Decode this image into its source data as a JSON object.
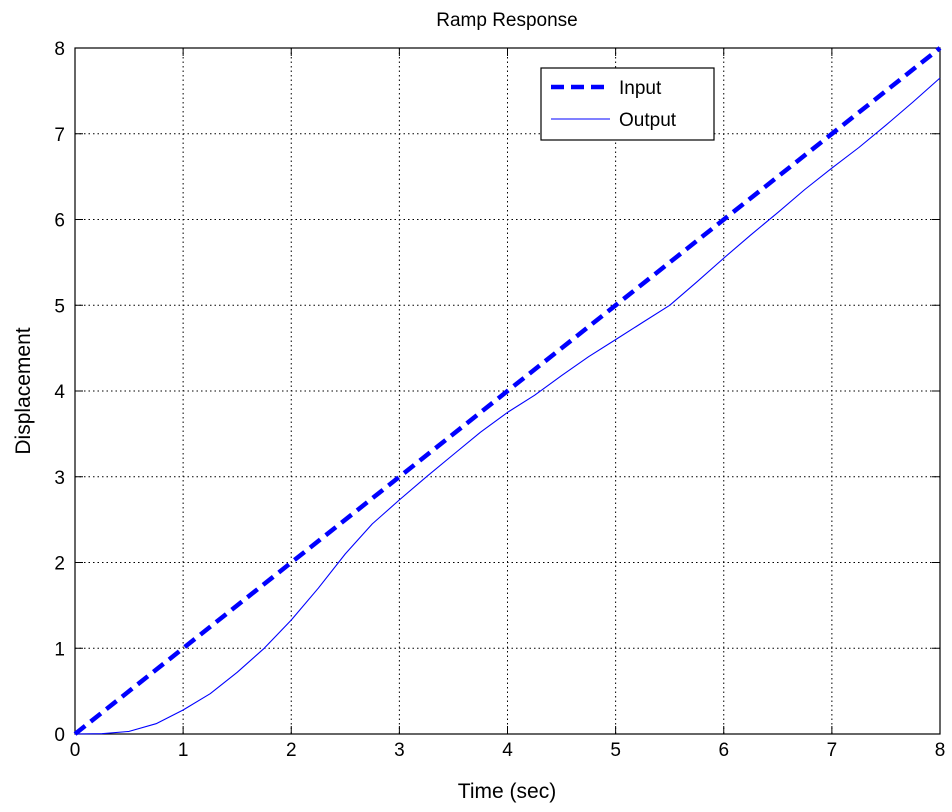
{
  "chart_data": {
    "type": "line",
    "title": "Ramp Response",
    "xlabel": "Time (sec)",
    "ylabel": "Displacement",
    "xlim": [
      0,
      8
    ],
    "ylim": [
      0,
      8
    ],
    "xticks": [
      "0",
      "1",
      "2",
      "3",
      "4",
      "5",
      "6",
      "7",
      "8"
    ],
    "yticks": [
      "0",
      "1",
      "2",
      "3",
      "4",
      "5",
      "6",
      "7",
      "8"
    ],
    "grid": true,
    "legend": {
      "position": "top-right"
    },
    "series": [
      {
        "name": "Input",
        "style": "dashed-thick",
        "color": "#0000ff",
        "x": [
          0,
          1,
          2,
          3,
          4,
          5,
          6,
          7,
          8
        ],
        "y": [
          0,
          1,
          2,
          3,
          4,
          5,
          6,
          7,
          8
        ]
      },
      {
        "name": "Output",
        "style": "solid-thin",
        "color": "#0000ff",
        "x": [
          0,
          0.25,
          0.5,
          0.75,
          1.0,
          1.25,
          1.5,
          1.75,
          2.0,
          2.25,
          2.5,
          2.75,
          3.0,
          3.25,
          3.5,
          3.75,
          4.0,
          4.25,
          4.5,
          4.75,
          5.0,
          5.25,
          5.5,
          5.75,
          6.0,
          6.25,
          6.5,
          6.75,
          7.0,
          7.25,
          7.5,
          7.75,
          8.0
        ],
        "y": [
          0,
          0.003,
          0.03,
          0.12,
          0.28,
          0.47,
          0.72,
          1.0,
          1.33,
          1.7,
          2.1,
          2.45,
          2.73,
          3.0,
          3.26,
          3.52,
          3.75,
          3.95,
          4.18,
          4.4,
          4.6,
          4.8,
          5.0,
          5.27,
          5.55,
          5.82,
          6.08,
          6.35,
          6.6,
          6.84,
          7.1,
          7.37,
          7.65
        ]
      }
    ]
  }
}
